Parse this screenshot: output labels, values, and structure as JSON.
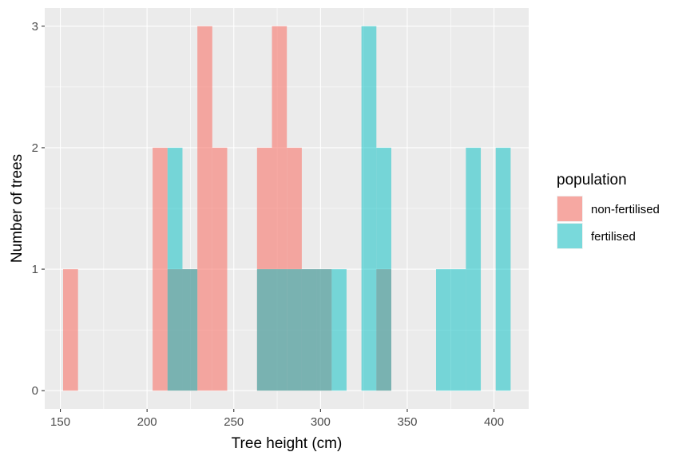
{
  "chart_data": {
    "type": "bar",
    "subtype": "overlaid histogram",
    "xlabel": "Tree height (cm)",
    "ylabel": "Number of trees",
    "xlim": [
      141,
      420
    ],
    "ylim": [
      -0.15,
      3.15
    ],
    "xticks": [
      150,
      200,
      250,
      300,
      350,
      400
    ],
    "yticks": [
      0,
      1,
      2,
      3
    ],
    "grid": true,
    "legend": {
      "title": "population",
      "placement": "right"
    },
    "bin_width": 8.6,
    "series": [
      {
        "name": "non-fertilised",
        "color": "#F8766D",
        "bins": [
          {
            "x0": 151.6,
            "x1": 160.2,
            "count": 1
          },
          {
            "x0": 203.2,
            "x1": 211.8,
            "count": 2
          },
          {
            "x0": 211.8,
            "x1": 220.4,
            "count": 1
          },
          {
            "x0": 220.4,
            "x1": 229.0,
            "count": 1
          },
          {
            "x0": 229.0,
            "x1": 237.6,
            "count": 3
          },
          {
            "x0": 237.6,
            "x1": 246.2,
            "count": 2
          },
          {
            "x0": 263.4,
            "x1": 272.0,
            "count": 2
          },
          {
            "x0": 272.0,
            "x1": 280.6,
            "count": 3
          },
          {
            "x0": 280.6,
            "x1": 289.2,
            "count": 2
          },
          {
            "x0": 289.2,
            "x1": 297.8,
            "count": 1
          },
          {
            "x0": 297.8,
            "x1": 306.4,
            "count": 1
          },
          {
            "x0": 332.2,
            "x1": 340.8,
            "count": 1
          }
        ]
      },
      {
        "name": "fertilised",
        "color": "#00BFC4",
        "bins": [
          {
            "x0": 211.8,
            "x1": 220.4,
            "count": 2
          },
          {
            "x0": 220.4,
            "x1": 229.0,
            "count": 1
          },
          {
            "x0": 263.4,
            "x1": 272.0,
            "count": 1
          },
          {
            "x0": 272.0,
            "x1": 280.6,
            "count": 1
          },
          {
            "x0": 280.6,
            "x1": 289.2,
            "count": 1
          },
          {
            "x0": 289.2,
            "x1": 297.8,
            "count": 1
          },
          {
            "x0": 297.8,
            "x1": 306.4,
            "count": 1
          },
          {
            "x0": 306.4,
            "x1": 315.0,
            "count": 1
          },
          {
            "x0": 323.6,
            "x1": 332.2,
            "count": 3
          },
          {
            "x0": 332.2,
            "x1": 340.8,
            "count": 2
          },
          {
            "x0": 366.6,
            "x1": 375.2,
            "count": 1
          },
          {
            "x0": 375.2,
            "x1": 383.8,
            "count": 1
          },
          {
            "x0": 383.8,
            "x1": 392.4,
            "count": 2
          },
          {
            "x0": 401.0,
            "x1": 409.6,
            "count": 2
          }
        ]
      }
    ]
  }
}
